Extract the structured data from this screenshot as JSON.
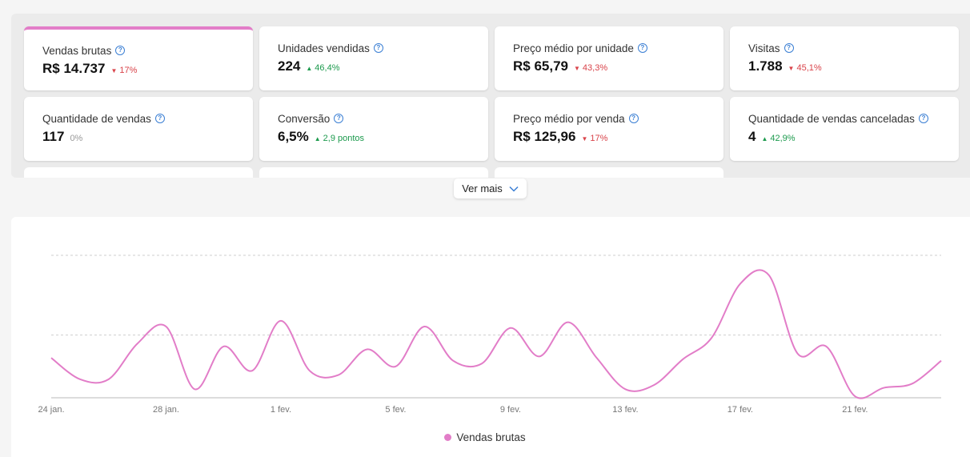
{
  "metrics": [
    {
      "label": "Vendas brutas",
      "value": "R$ 14.737",
      "delta": "17%",
      "trend": "down",
      "selected": true
    },
    {
      "label": "Unidades vendidas",
      "value": "224",
      "delta": "46,4%",
      "trend": "up"
    },
    {
      "label": "Preço médio por unidade",
      "value": "R$ 65,79",
      "delta": "43,3%",
      "trend": "down"
    },
    {
      "label": "Visitas",
      "value": "1.788",
      "delta": "45,1%",
      "trend": "down"
    },
    {
      "label": "Quantidade de vendas",
      "value": "117",
      "delta": "0%",
      "trend": "neutral"
    },
    {
      "label": "Conversão",
      "value": "6,5%",
      "delta": "2,9 pontos",
      "trend": "up"
    },
    {
      "label": "Preço médio por venda",
      "value": "R$ 125,96",
      "delta": "17%",
      "trend": "down"
    },
    {
      "label": "Quantidade de vendas canceladas",
      "value": "4",
      "delta": "42,9%",
      "trend": "up"
    }
  ],
  "ver_mais_label": "Ver mais",
  "colors": {
    "accent": "#e27dc8",
    "down": "#d9434a",
    "up": "#1c9a4d",
    "help": "#3b7fd4"
  },
  "icons": {
    "help": "help-circle-icon",
    "down": "triangle-down-icon",
    "up": "triangle-up-icon",
    "chevron": "chevron-down-icon"
  },
  "chart_data": {
    "type": "line",
    "title": "",
    "xlabel": "",
    "ylabel": "",
    "grid": true,
    "y_tick_labels_shown": false,
    "legend_position": "bottom-center",
    "ylim": [
      0,
      100
    ],
    "x_tick_labels": [
      "24 jan.",
      "28 jan.",
      "1 fev.",
      "5 fev.",
      "9 fev.",
      "13 fev.",
      "17 fev.",
      "21 fev."
    ],
    "x": [
      "24 jan.",
      "25 jan.",
      "26 jan.",
      "27 jan.",
      "28 jan.",
      "29 jan.",
      "30 jan.",
      "31 jan.",
      "1 fev.",
      "2 fev.",
      "3 fev.",
      "4 fev.",
      "5 fev.",
      "6 fev.",
      "7 fev.",
      "8 fev.",
      "9 fev.",
      "10 fev.",
      "11 fev.",
      "12 fev.",
      "13 fev.",
      "14 fev.",
      "15 fev.",
      "16 fev.",
      "17 fev.",
      "18 fev.",
      "19 fev.",
      "20 fev.",
      "21 fev.",
      "22 fev.",
      "23 fev.",
      "24 fev."
    ],
    "series": [
      {
        "name": "Vendas brutas",
        "color": "#e27dc8",
        "values": [
          28,
          13,
          13,
          38,
          50,
          6,
          36,
          19,
          54,
          19,
          16,
          34,
          22,
          50,
          26,
          24,
          49,
          29,
          53,
          28,
          6,
          9,
          27,
          42,
          80,
          86,
          31,
          36,
          1,
          7,
          10,
          26
        ]
      }
    ]
  }
}
